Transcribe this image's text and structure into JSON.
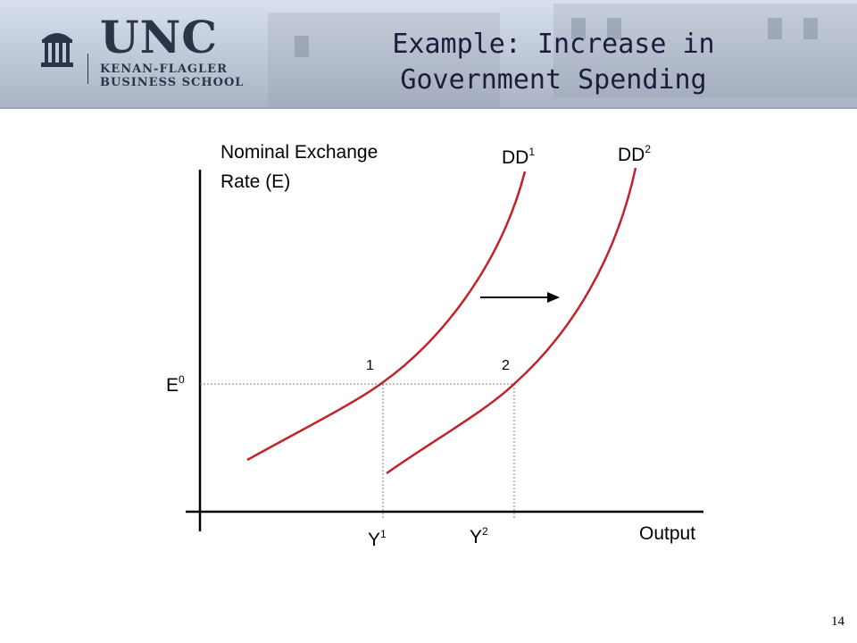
{
  "header": {
    "logo": {
      "main": "UNC",
      "line1": "KENAN-FLAGLER",
      "line2": "BUSINESS SCHOOL"
    },
    "title_line1": "Example: Increase in",
    "title_line2": "Government Spending"
  },
  "diagram": {
    "y_axis_label_line1": "Nominal Exchange",
    "y_axis_label_line2": "Rate (E)",
    "x_axis_label": "Output",
    "curves": [
      {
        "name": "DD",
        "sup": "1"
      },
      {
        "name": "DD",
        "sup": "2"
      }
    ],
    "point_labels": [
      "1",
      "2"
    ],
    "e_level": {
      "base": "E",
      "sup": "0"
    },
    "outputs": [
      {
        "base": "Y",
        "sup": "1"
      },
      {
        "base": "Y",
        "sup": "2"
      }
    ],
    "colors": {
      "curve": "#c0232b",
      "axis": "#000000",
      "guide": "#777777"
    }
  },
  "page_number": "14"
}
